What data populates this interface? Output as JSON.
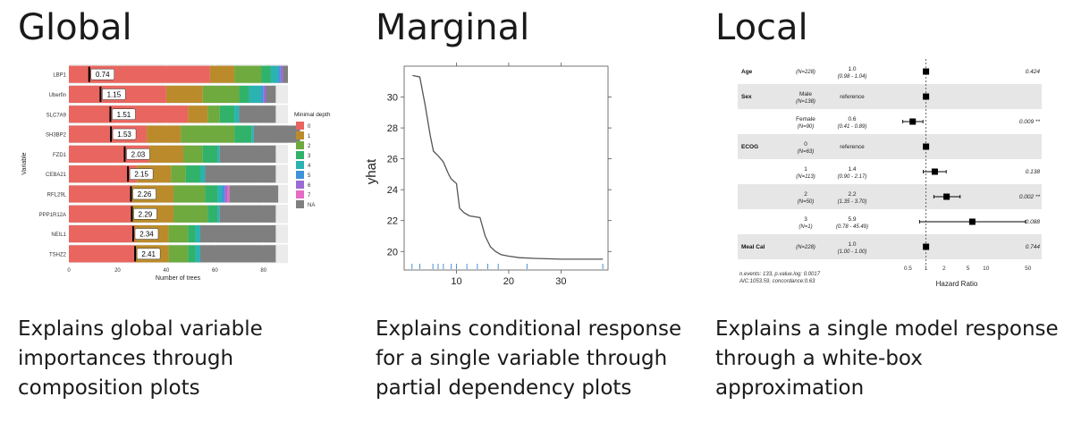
{
  "panels": {
    "global": {
      "heading": "Global",
      "caption": [
        "Explains global variable",
        "importances through",
        "composition plots"
      ]
    },
    "marginal": {
      "heading": "Marginal",
      "caption": [
        "Explains conditional response",
        "for a single variable through",
        "partial dependency plots"
      ]
    },
    "local": {
      "heading": "Local",
      "caption": [
        "Explains a single model response",
        "through a white-box",
        "approximation"
      ]
    }
  },
  "chart_data": [
    {
      "type": "bar",
      "stacked": true,
      "orientation": "horizontal",
      "xlabel": "Number of trees",
      "ylabel": "Variable",
      "xlim": [
        0,
        90
      ],
      "xticks": [
        0,
        20,
        40,
        60,
        80
      ],
      "legend_title": "Minimal depth",
      "legend_position": "right",
      "categories": [
        "LBP1",
        "Uberfin",
        "SLC7A9",
        "SH3BP2",
        "FZD1",
        "CEBA21",
        "RFL29L",
        "PPP1R12A",
        "NEIL1",
        "TSHZ2"
      ],
      "mean_min_depth": [
        "0.74",
        "1.15",
        "1.51",
        "1.53",
        "2.03",
        "2.15",
        "2.26",
        "2.29",
        "2.34",
        "2.41"
      ],
      "series": [
        {
          "name": "0",
          "color": "#e8665f",
          "values": [
            58,
            40,
            49,
            32,
            33,
            28,
            26,
            26,
            27,
            27
          ]
        },
        {
          "name": "1",
          "color": "#bb8b2b",
          "values": [
            10,
            15,
            8,
            14,
            14,
            14,
            17,
            17,
            14,
            14
          ]
        },
        {
          "name": "2",
          "color": "#6eaa3d",
          "values": [
            11,
            15,
            5,
            22,
            8,
            6,
            13,
            14,
            8,
            8
          ]
        },
        {
          "name": "3",
          "color": "#30b26a",
          "values": [
            4,
            4,
            6,
            7,
            6,
            6,
            5,
            4,
            3,
            3
          ]
        },
        {
          "name": "4",
          "color": "#2ab3b1",
          "values": [
            3,
            5,
            2,
            1,
            1,
            2,
            2,
            1,
            2,
            2
          ]
        },
        {
          "name": "5",
          "color": "#3f93db",
          "values": [
            1,
            1,
            0,
            0,
            0,
            0,
            1,
            0,
            0,
            0
          ]
        },
        {
          "name": "6",
          "color": "#9b6bd5",
          "values": [
            1,
            1,
            0,
            0,
            0,
            0,
            1,
            0,
            0,
            0
          ]
        },
        {
          "name": "7",
          "color": "#e66bc4",
          "values": [
            0,
            0,
            0,
            0,
            0,
            0,
            1,
            0,
            0,
            0
          ]
        },
        {
          "name": "NA",
          "color": "#7f7f7f",
          "values": [
            2,
            4,
            15,
            19,
            23,
            29,
            20,
            23,
            31,
            31
          ]
        }
      ]
    },
    {
      "type": "line",
      "ylabel": "yhat",
      "xlim": [
        0,
        39
      ],
      "ylim": [
        18.8,
        32
      ],
      "xticks": [
        10,
        20,
        30
      ],
      "yticks": [
        20,
        22,
        24,
        26,
        28,
        30
      ],
      "x": [
        1.6,
        3.0,
        4.0,
        5.0,
        5.6,
        6.5,
        7.5,
        8.5,
        9.0,
        10.0,
        10.6,
        11.5,
        12.5,
        14.5,
        15.5,
        16.5,
        17.5,
        18.5,
        20.0,
        22.0,
        25.0,
        30.0,
        38.0
      ],
      "y": [
        31.4,
        31.3,
        29.5,
        27.5,
        26.5,
        26.2,
        25.8,
        25.0,
        24.7,
        24.4,
        22.8,
        22.5,
        22.3,
        22.2,
        21.0,
        20.3,
        20.0,
        19.8,
        19.7,
        19.6,
        19.55,
        19.5,
        19.5
      ],
      "rug": [
        1.5,
        3.0,
        5.5,
        6.5,
        7.5,
        9.0,
        10.0,
        12.0,
        14.0,
        16.0,
        18.0,
        23.5,
        38.0
      ]
    },
    {
      "type": "forest",
      "xlabel": "Hazard Ratio",
      "xscale": "log",
      "xlim": [
        0.35,
        60
      ],
      "xticks": [
        "0.5",
        "1",
        "2",
        "5",
        "10",
        "50"
      ],
      "rows": [
        {
          "var": "Age",
          "level": "",
          "n": "(N=228)",
          "hr": "1.0",
          "ci": "(0.98 - 1.04)",
          "p": "0.424",
          "point": 1.0,
          "lo": null,
          "hi": null,
          "shade": false
        },
        {
          "var": "Sex",
          "level": "Male",
          "n": "(N=138)",
          "hr": "reference",
          "ci": "",
          "p": "",
          "point": 1.0,
          "lo": null,
          "hi": null,
          "shade": true
        },
        {
          "var": "",
          "level": "Female",
          "n": "(N=90)",
          "hr": "0.6",
          "ci": "(0.41 - 0.89)",
          "p": "0.009 **",
          "point": 0.6,
          "lo": 0.41,
          "hi": 0.89,
          "shade": false
        },
        {
          "var": "ECOG",
          "level": "0",
          "n": "(N=63)",
          "hr": "reference",
          "ci": "",
          "p": "",
          "point": 1.0,
          "lo": null,
          "hi": null,
          "shade": true
        },
        {
          "var": "",
          "level": "1",
          "n": "(N=113)",
          "hr": "1.4",
          "ci": "(0.90 - 2.17)",
          "p": "0.138",
          "point": 1.4,
          "lo": 0.9,
          "hi": 2.17,
          "shade": false
        },
        {
          "var": "",
          "level": "2",
          "n": "(N=50)",
          "hr": "2.2",
          "ci": "(1.35 - 3.70)",
          "p": "0.002 **",
          "point": 2.2,
          "lo": 1.35,
          "hi": 3.7,
          "shade": true
        },
        {
          "var": "",
          "level": "3",
          "n": "(N=1)",
          "hr": "5.9",
          "ci": "(0.78 - 45.49)",
          "p": "0.088",
          "point": 5.9,
          "lo": 0.78,
          "hi": 45.49,
          "shade": false
        },
        {
          "var": "Meal Cal",
          "level": "",
          "n": "(N=228)",
          "hr": "1.0",
          "ci": "(1.00 - 1.00)",
          "p": "0.744",
          "point": 1.0,
          "lo": null,
          "hi": null,
          "shade": true
        }
      ],
      "footnote": [
        "n.events: 133, p.value.log: 0.0017",
        "AIC:1053.59, concordance:0.63"
      ]
    }
  ]
}
